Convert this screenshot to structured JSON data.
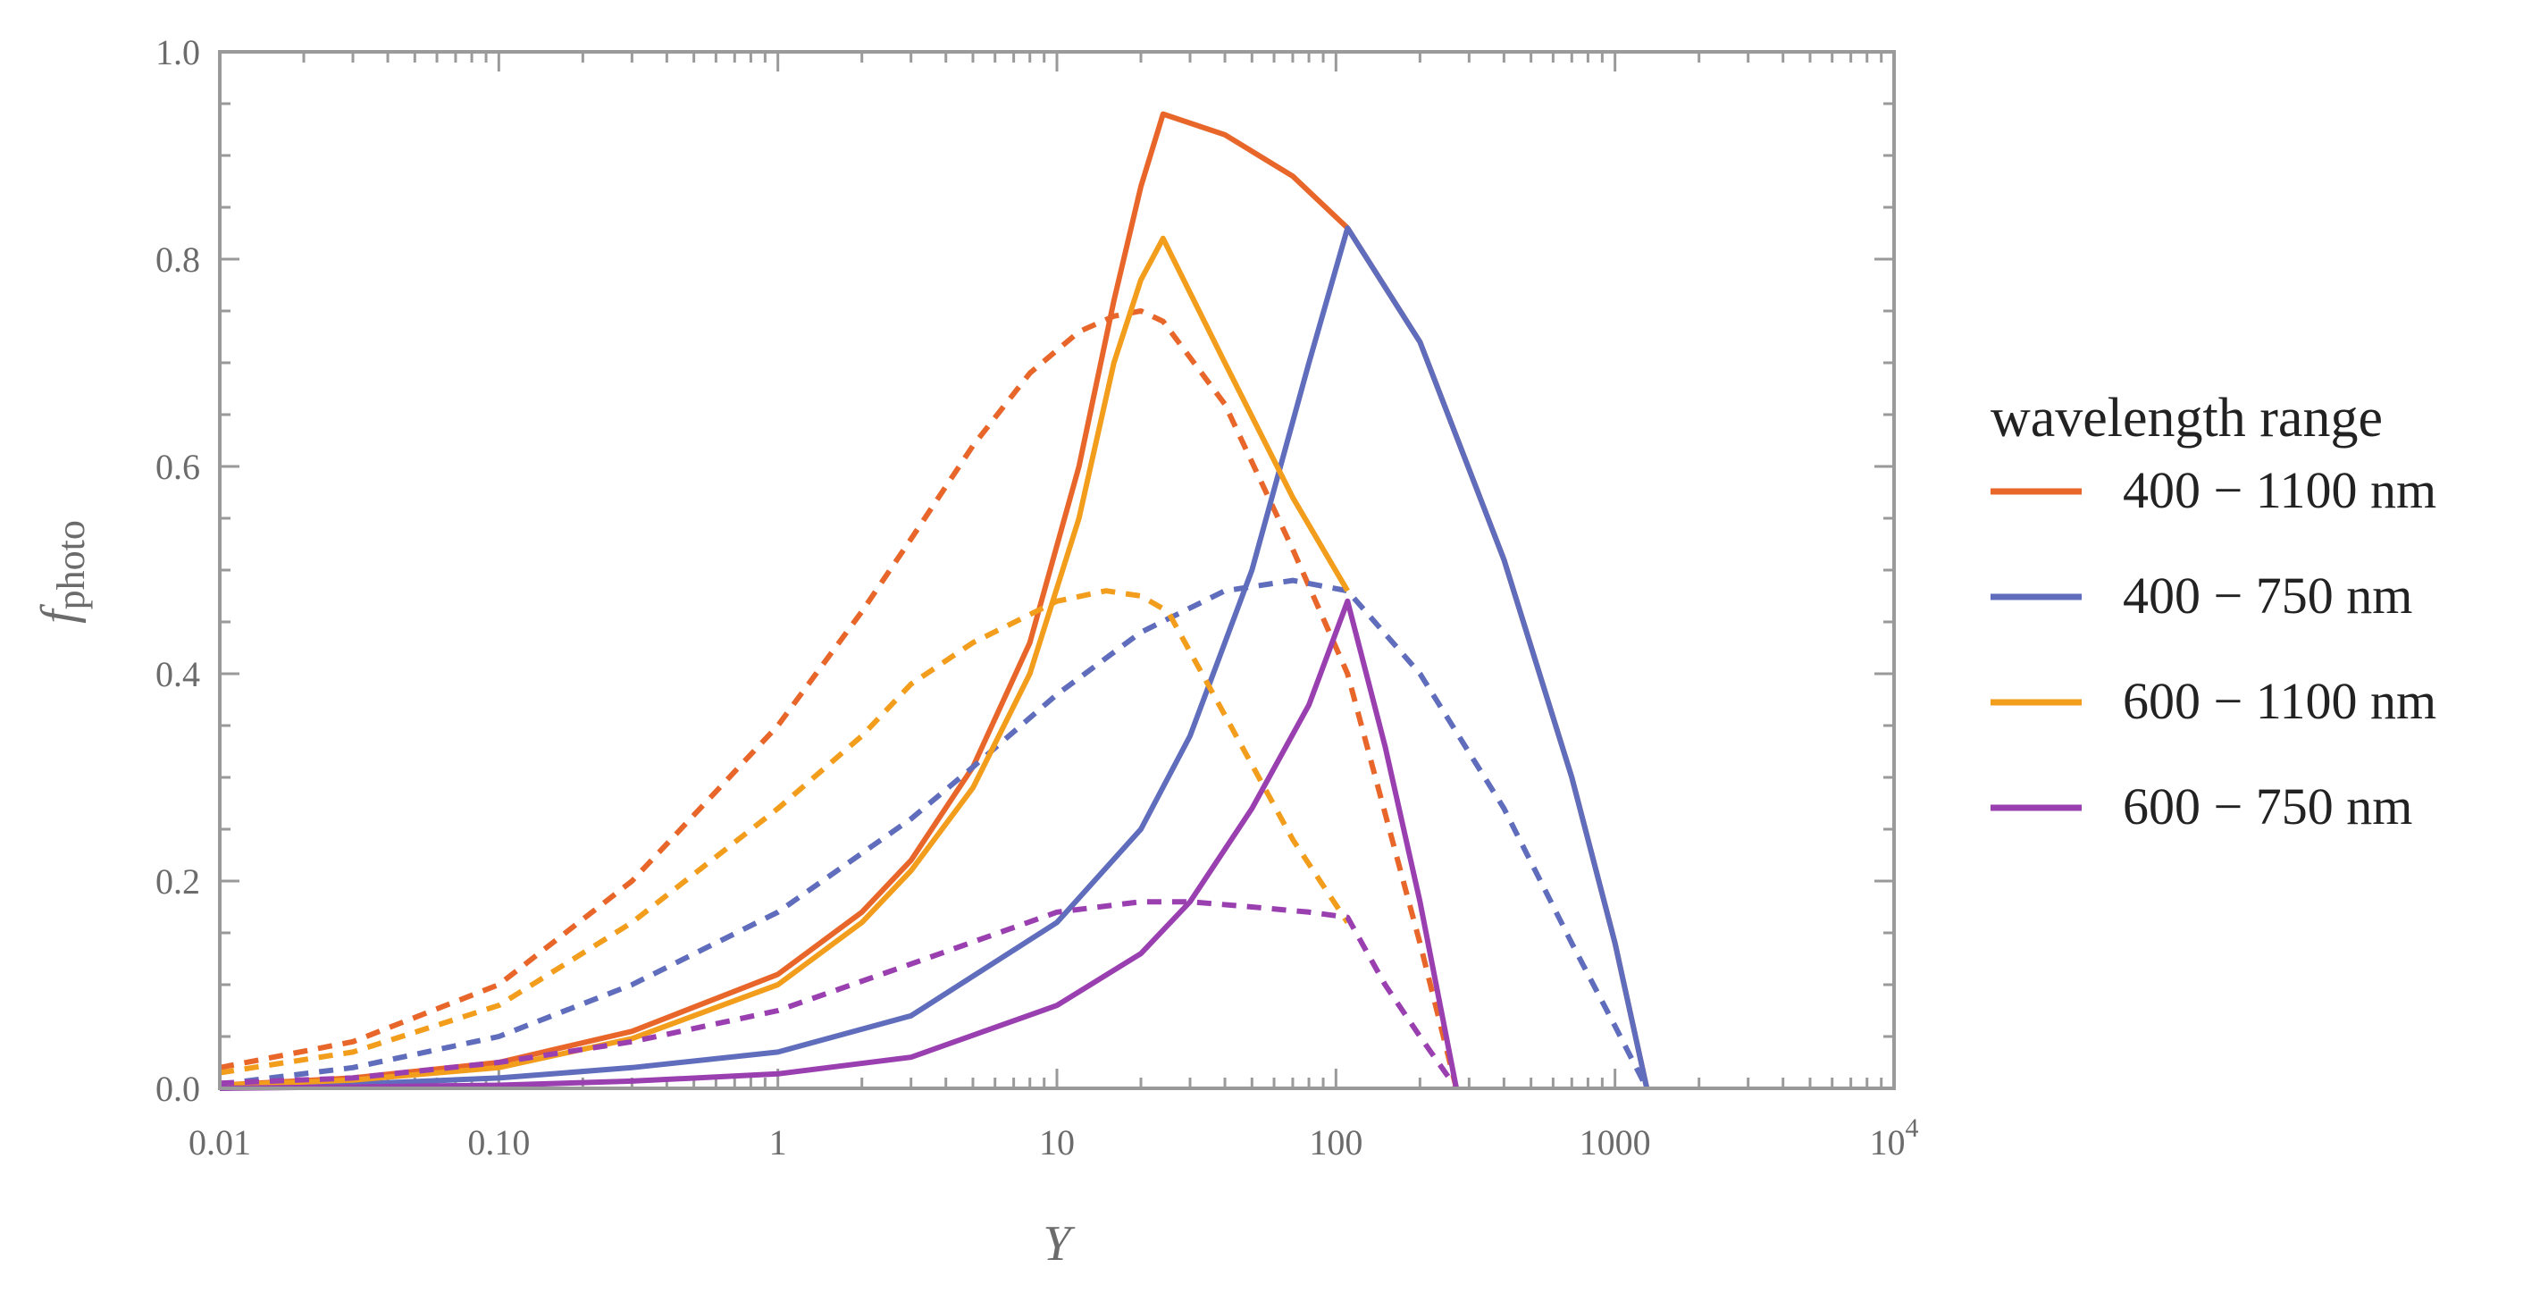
{
  "chart_data": {
    "type": "line",
    "title": "",
    "xlabel": "Y",
    "ylabel": {
      "main": "f",
      "sub": "photo"
    },
    "xscale": "log",
    "xlim": [
      0.01,
      10000
    ],
    "ylim": [
      0,
      1
    ],
    "x_ticks": [
      {
        "value": 0.01,
        "label": "0.01"
      },
      {
        "value": 0.1,
        "label": "0.10"
      },
      {
        "value": 1,
        "label": "1"
      },
      {
        "value": 10,
        "label": "10"
      },
      {
        "value": 100,
        "label": "100"
      },
      {
        "value": 1000,
        "label": "1000"
      },
      {
        "value": 10000,
        "label": "10",
        "sup": "4"
      }
    ],
    "y_ticks": [
      {
        "value": 0,
        "label": "0.0"
      },
      {
        "value": 0.2,
        "label": "0.2"
      },
      {
        "value": 0.4,
        "label": "0.4"
      },
      {
        "value": 0.6,
        "label": "0.6"
      },
      {
        "value": 0.8,
        "label": "0.8"
      },
      {
        "value": 1.0,
        "label": "1.0"
      }
    ],
    "grid": false,
    "legend": {
      "title": "wavelength range",
      "position": "right"
    },
    "series": [
      {
        "name": "400 − 1100 nm",
        "color": "#e8662a",
        "solid": {
          "x": [
            0.01,
            0.03,
            0.1,
            0.3,
            1,
            2,
            3,
            5,
            8,
            12,
            16,
            20,
            24,
            40,
            70,
            110,
            200,
            400,
            700,
            1000,
            1300
          ],
          "y": [
            0.003,
            0.01,
            0.025,
            0.055,
            0.11,
            0.17,
            0.22,
            0.31,
            0.43,
            0.6,
            0.76,
            0.87,
            0.94,
            0.92,
            0.88,
            0.83,
            0.72,
            0.51,
            0.3,
            0.14,
            0.0
          ]
        },
        "dashed": {
          "x": [
            0.01,
            0.03,
            0.1,
            0.3,
            1,
            2,
            3,
            5,
            8,
            12,
            16,
            20,
            24,
            40,
            70,
            110,
            200,
            270
          ],
          "y": [
            0.02,
            0.045,
            0.1,
            0.2,
            0.35,
            0.46,
            0.53,
            0.62,
            0.69,
            0.73,
            0.745,
            0.75,
            0.74,
            0.66,
            0.52,
            0.4,
            0.14,
            0.0
          ]
        }
      },
      {
        "name": "400 − 750 nm",
        "color": "#5f6dbc",
        "solid": {
          "x": [
            0.01,
            0.03,
            0.1,
            0.3,
            1,
            3,
            10,
            20,
            30,
            50,
            80,
            110,
            200,
            400,
            700,
            1000,
            1300
          ],
          "y": [
            0.0,
            0.004,
            0.01,
            0.02,
            0.035,
            0.07,
            0.16,
            0.25,
            0.34,
            0.5,
            0.7,
            0.83,
            0.72,
            0.51,
            0.3,
            0.14,
            0.0
          ]
        },
        "dashed": {
          "x": [
            0.01,
            0.03,
            0.1,
            0.3,
            1,
            3,
            5,
            10,
            20,
            40,
            70,
            110,
            200,
            400,
            700,
            1000,
            1300
          ],
          "y": [
            0.004,
            0.02,
            0.05,
            0.1,
            0.17,
            0.26,
            0.31,
            0.38,
            0.44,
            0.48,
            0.49,
            0.48,
            0.4,
            0.27,
            0.14,
            0.06,
            0.0
          ]
        }
      },
      {
        "name": "600 − 1100 nm",
        "color": "#f29d1c",
        "solid": {
          "x": [
            0.01,
            0.03,
            0.1,
            0.3,
            1,
            2,
            3,
            5,
            8,
            12,
            16,
            20,
            24,
            40,
            70,
            110
          ],
          "y": [
            0.003,
            0.008,
            0.02,
            0.048,
            0.1,
            0.16,
            0.21,
            0.29,
            0.4,
            0.55,
            0.7,
            0.78,
            0.82,
            0.7,
            0.57,
            0.48
          ]
        },
        "dashed": {
          "x": [
            0.01,
            0.03,
            0.1,
            0.3,
            1,
            2,
            3,
            5,
            10,
            15,
            20,
            25,
            40,
            70,
            110
          ],
          "y": [
            0.015,
            0.035,
            0.08,
            0.16,
            0.27,
            0.34,
            0.39,
            0.43,
            0.47,
            0.48,
            0.475,
            0.46,
            0.36,
            0.24,
            0.16
          ]
        }
      },
      {
        "name": "600 − 750 nm",
        "color": "#9a3fb0",
        "solid": {
          "x": [
            0.01,
            0.1,
            0.3,
            1,
            3,
            10,
            20,
            30,
            50,
            80,
            110,
            150,
            200,
            270
          ],
          "y": [
            0.0,
            0.003,
            0.007,
            0.014,
            0.03,
            0.08,
            0.13,
            0.18,
            0.27,
            0.37,
            0.47,
            0.33,
            0.18,
            0.0
          ]
        },
        "dashed": {
          "x": [
            0.01,
            0.03,
            0.1,
            0.3,
            1,
            3,
            10,
            20,
            30,
            50,
            80,
            110,
            150,
            200,
            270
          ],
          "y": [
            0.005,
            0.01,
            0.025,
            0.045,
            0.075,
            0.12,
            0.17,
            0.18,
            0.18,
            0.175,
            0.17,
            0.165,
            0.1,
            0.05,
            0.0
          ]
        }
      }
    ]
  }
}
